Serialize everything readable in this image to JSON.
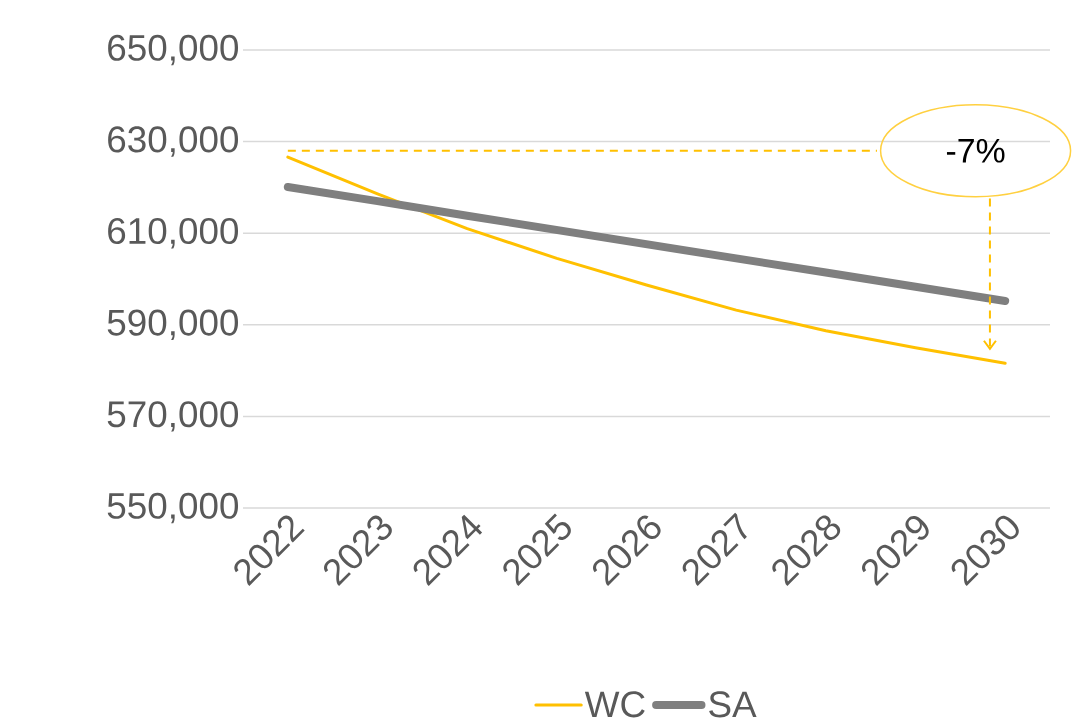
{
  "chart_data": {
    "type": "line",
    "categories": [
      "2022",
      "2023",
      "2024",
      "2025",
      "2026",
      "2027",
      "2028",
      "2029",
      "2030"
    ],
    "series": [
      {
        "name": "WC",
        "color": "#ffc000",
        "values": [
          626600,
          618600,
          611000,
          604500,
          598700,
          593200,
          588700,
          585000,
          581600
        ]
      },
      {
        "name": "SA",
        "color": "#7f7f7f",
        "values": [
          620100,
          617000,
          613800,
          610700,
          607600,
          604500,
          601400,
          598300,
          595200
        ]
      }
    ],
    "ylim": [
      550000,
      650000
    ],
    "yticks": [
      {
        "value": 550000,
        "label": "550,000"
      },
      {
        "value": 570000,
        "label": "570,000"
      },
      {
        "value": 590000,
        "label": "590,000"
      },
      {
        "value": 610000,
        "label": "610,000"
      },
      {
        "value": 630000,
        "label": "630,000"
      },
      {
        "value": 650000,
        "label": "650,000"
      }
    ],
    "grid": "y",
    "legend": "bottom",
    "annotations": [
      "-7%"
    ],
    "ref_lines": [
      {
        "axis": "y",
        "value": 628000,
        "color": "#ffc000",
        "line_style": "dashed"
      }
    ]
  }
}
